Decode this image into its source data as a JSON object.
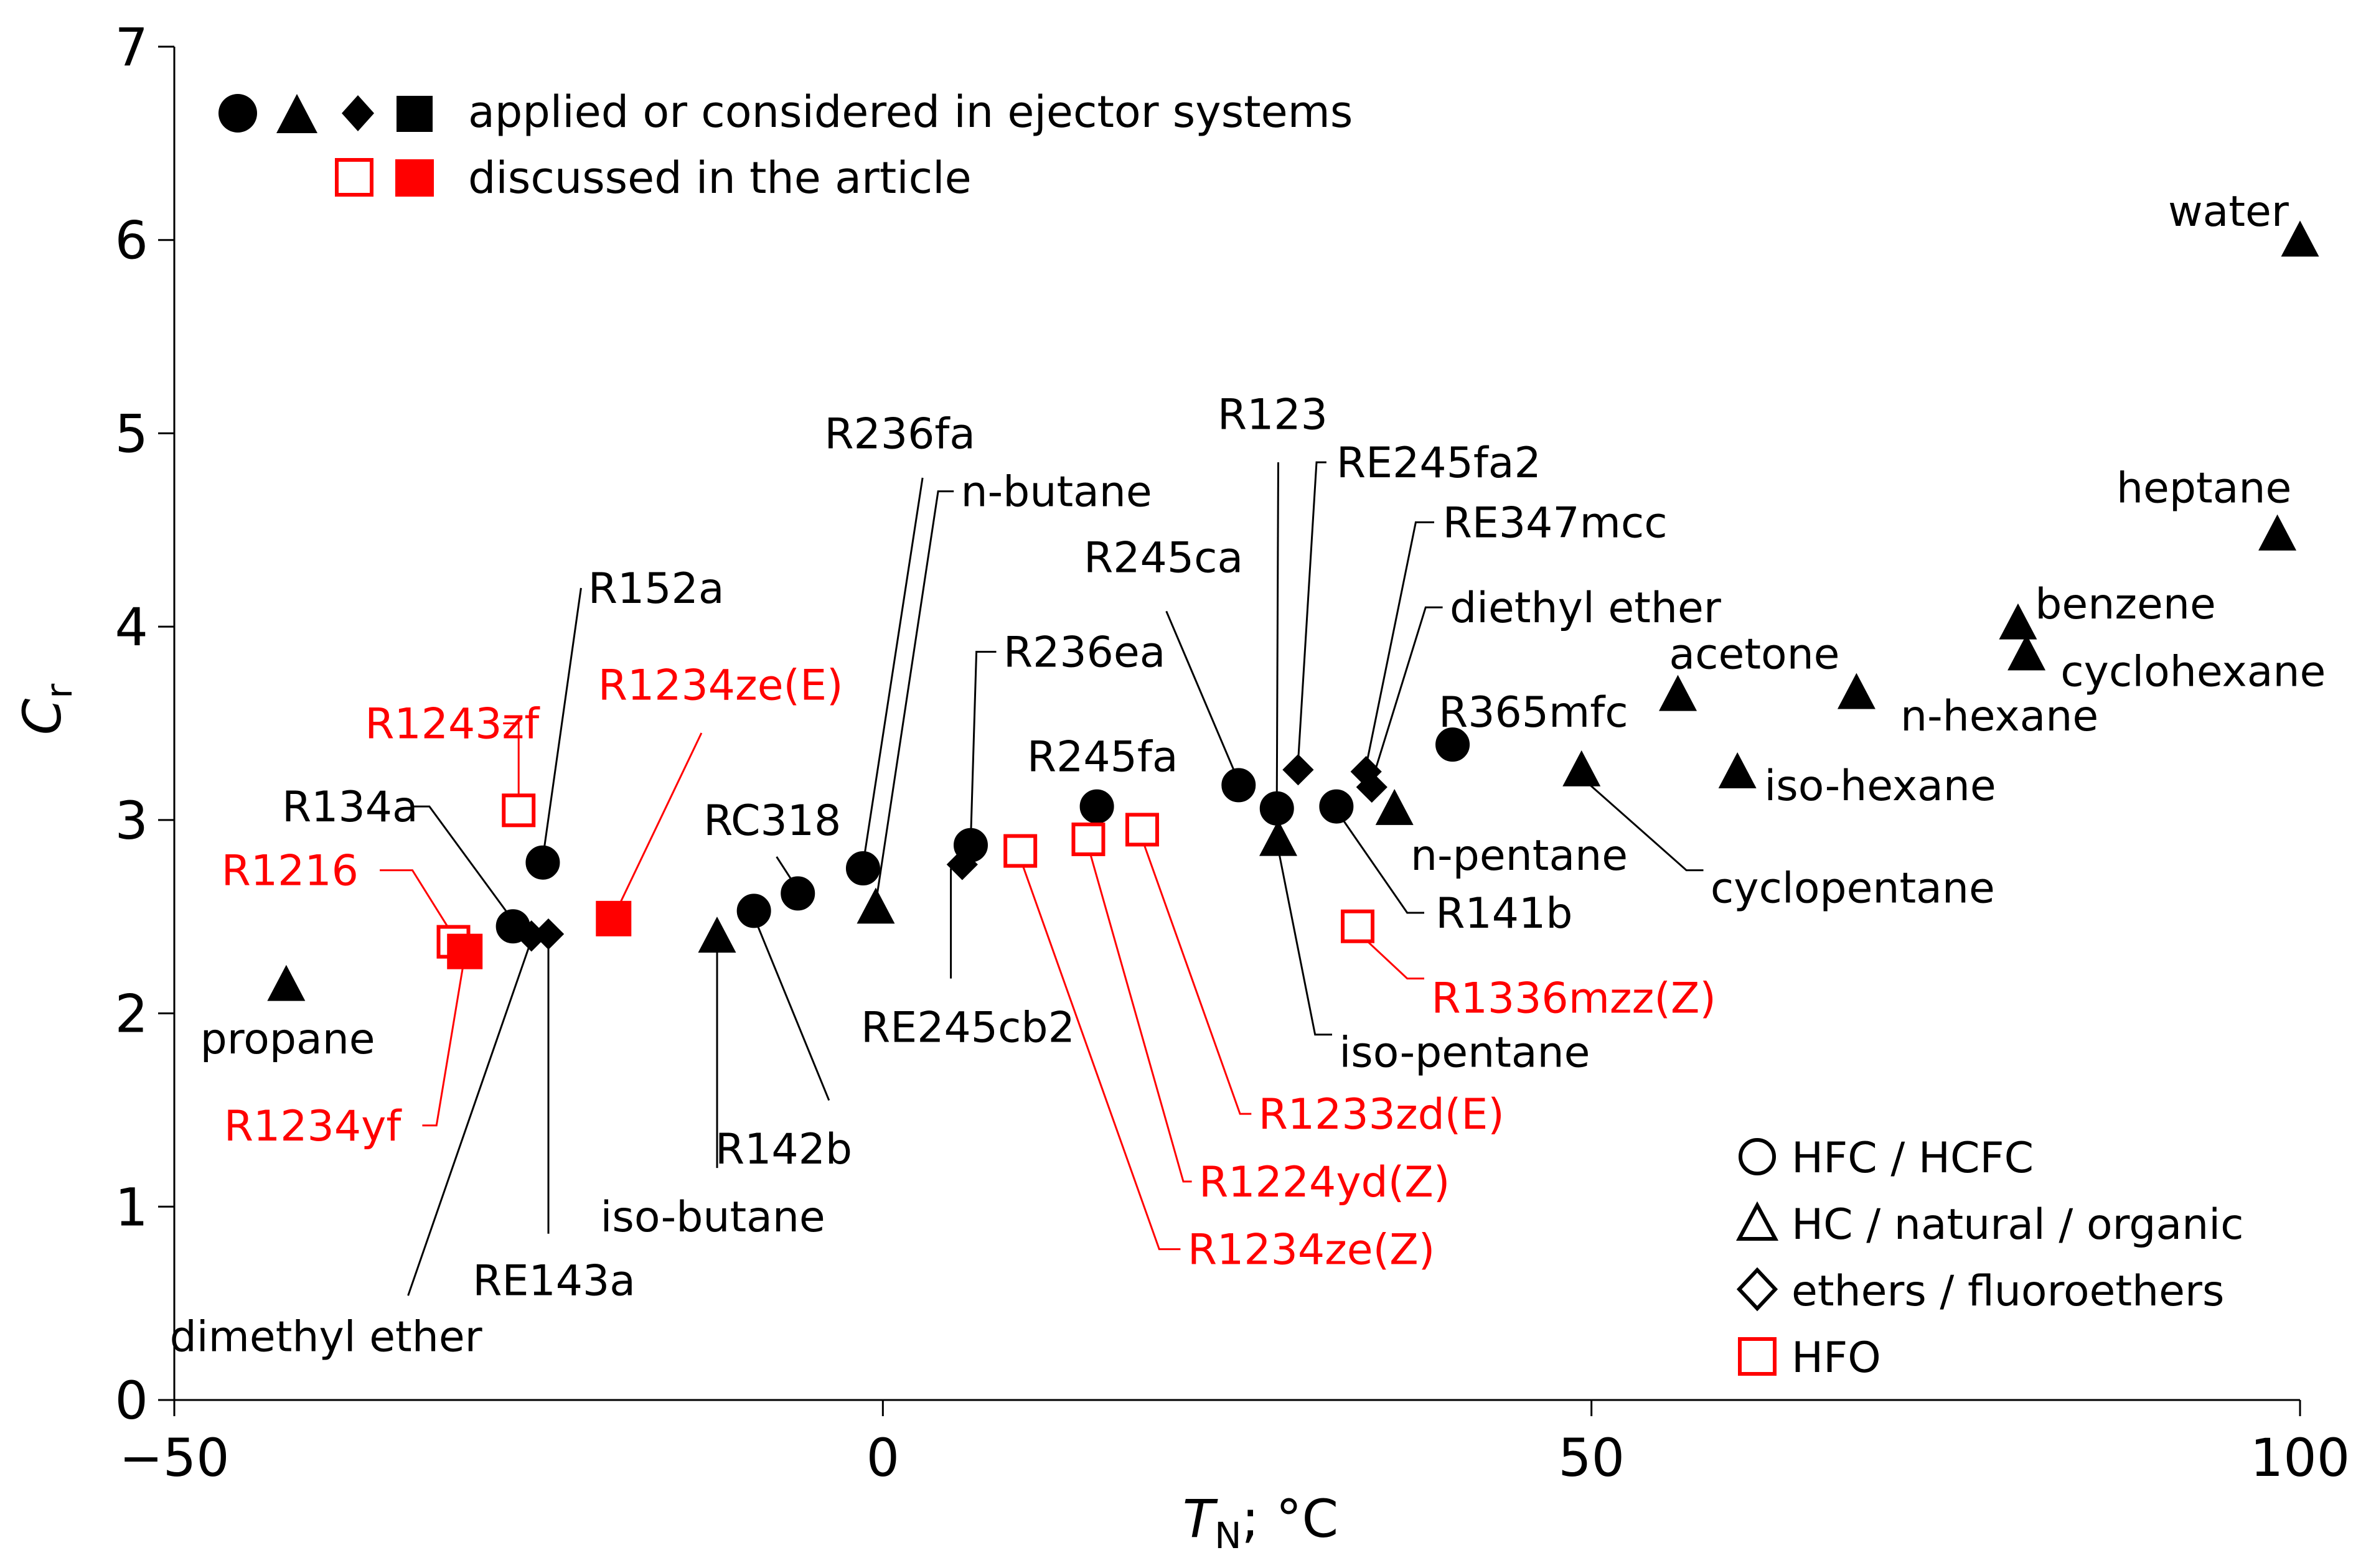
{
  "chart_data": {
    "type": "scatter",
    "xlabel_main": "T",
    "xlabel_sub": "N",
    "xlabel_rest": "; °C",
    "ylabel_main": "C",
    "ylabel_sub": "r",
    "xlim": [
      -50,
      100
    ],
    "ylim": [
      0,
      7
    ],
    "xticks": [
      -50,
      0,
      50,
      100
    ],
    "xtick_labels": [
      "−50",
      "0",
      "50",
      "100"
    ],
    "yticks": [
      0,
      1,
      2,
      3,
      4,
      5,
      6,
      7
    ],
    "ytick_labels": [
      "0",
      "1",
      "2",
      "3",
      "4",
      "5",
      "6",
      "7"
    ],
    "legend_top": {
      "line1": "applied or considered in ejector systems",
      "line2": "discussed in the article"
    },
    "legend_bottom": [
      {
        "shape": "circle",
        "label": "HFC / HCFC"
      },
      {
        "shape": "triangle",
        "label": "HC / natural / organic"
      },
      {
        "shape": "diamond",
        "label": "ethers / fluoroethers"
      },
      {
        "shape": "square",
        "label": "HFO"
      }
    ],
    "colors": {
      "black": "#000000",
      "red": "#ff0000"
    },
    "points": [
      {
        "name": "propane",
        "x": -42.1,
        "y": 2.15,
        "shape": "triangle",
        "fill": true,
        "color": "black",
        "lx": -42,
        "ly": 1.87,
        "anchor": "middle"
      },
      {
        "name": "R1216",
        "x": -30.3,
        "y": 2.37,
        "shape": "square",
        "fill": false,
        "color": "red",
        "lx": -37,
        "ly": 2.74,
        "anchor": "end",
        "leader": [
          [
            -35.5,
            2.74
          ],
          [
            -33.2,
            2.74
          ],
          [
            -30.3,
            2.4
          ]
        ]
      },
      {
        "name": "R1234yf",
        "x": -29.5,
        "y": 2.32,
        "shape": "square",
        "fill": true,
        "color": "red",
        "lx": -34,
        "ly": 1.42,
        "anchor": "end",
        "leader": [
          [
            -32.5,
            1.42
          ],
          [
            -31.5,
            1.42
          ],
          [
            -29.5,
            2.3
          ]
        ]
      },
      {
        "name": "R134a",
        "x": -26.1,
        "y": 2.45,
        "shape": "circle",
        "fill": true,
        "color": "black",
        "lx": -37.6,
        "ly": 3.07,
        "anchor": "middle",
        "leader": [
          [
            -33.3,
            3.07
          ],
          [
            -32,
            3.07
          ],
          [
            -26.1,
            2.48
          ]
        ]
      },
      {
        "name": "dimethyl ether",
        "x": -24.8,
        "y": 2.4,
        "shape": "diamond",
        "fill": true,
        "color": "black",
        "lx": -39.3,
        "ly": 0.33,
        "anchor": "middle",
        "leader": [
          [
            -33.5,
            0.54
          ],
          [
            -24.8,
            2.38
          ]
        ]
      },
      {
        "name": "RE143a",
        "x": -23.6,
        "y": 2.41,
        "shape": "diamond",
        "fill": true,
        "color": "black",
        "lx": -23.2,
        "ly": 0.62,
        "anchor": "middle",
        "leader": [
          [
            -23.6,
            0.86
          ],
          [
            -23.6,
            2.38
          ]
        ]
      },
      {
        "name": "R1243zf",
        "x": -25.7,
        "y": 3.05,
        "shape": "square",
        "fill": false,
        "color": "red",
        "lx": -30.4,
        "ly": 3.5,
        "anchor": "middle",
        "leader": [
          [
            -26.8,
            3.5
          ],
          [
            -25.7,
            3.5
          ],
          [
            -25.7,
            3.1
          ]
        ]
      },
      {
        "name": "R152a",
        "x": -24.0,
        "y": 2.78,
        "shape": "circle",
        "fill": true,
        "color": "black",
        "lx": -20.8,
        "ly": 4.2,
        "anchor": "start",
        "leader": [
          [
            -21.3,
            4.2
          ],
          [
            -21.3,
            4.2
          ],
          [
            -24,
            2.8
          ]
        ]
      },
      {
        "name": "R1234ze(E)",
        "x": -19.0,
        "y": 2.49,
        "shape": "square",
        "fill": true,
        "color": "red",
        "lx": -20.1,
        "ly": 3.7,
        "anchor": "start",
        "leader": [
          [
            -12.8,
            3.45
          ],
          [
            -19,
            2.5
          ]
        ]
      },
      {
        "name": "iso-butane",
        "x": -11.7,
        "y": 2.4,
        "shape": "triangle",
        "fill": true,
        "color": "black",
        "lx": -12,
        "ly": 0.95,
        "anchor": "middle",
        "leader": [
          [
            -11.7,
            1.2
          ],
          [
            -11.7,
            2.35
          ]
        ]
      },
      {
        "name": "R142b",
        "x": -9.1,
        "y": 2.53,
        "shape": "circle",
        "fill": true,
        "color": "black",
        "lx": -7,
        "ly": 1.3,
        "anchor": "middle",
        "leader": [
          [
            -3.8,
            1.55
          ],
          [
            -9.1,
            2.5
          ]
        ]
      },
      {
        "name": "RC318",
        "x": -6.0,
        "y": 2.62,
        "shape": "circle",
        "fill": true,
        "color": "black",
        "lx": -7.8,
        "ly": 3.0,
        "anchor": "middle",
        "leader": [
          [
            -7.5,
            2.81
          ],
          [
            -6,
            2.64
          ]
        ]
      },
      {
        "name": "R236fa",
        "x": -1.4,
        "y": 2.75,
        "shape": "circle",
        "fill": true,
        "color": "black",
        "lx": 1.2,
        "ly": 5.0,
        "anchor": "middle",
        "leader": [
          [
            2.8,
            4.77
          ],
          [
            -1.4,
            2.77
          ]
        ]
      },
      {
        "name": "n-butane",
        "x": -0.5,
        "y": 2.55,
        "shape": "triangle",
        "fill": true,
        "color": "black",
        "lx": 5.5,
        "ly": 4.7,
        "anchor": "start",
        "leader": [
          [
            5,
            4.7
          ],
          [
            3.9,
            4.7
          ],
          [
            -0.5,
            2.57
          ]
        ]
      },
      {
        "name": "RE245cb2",
        "x": 5.6,
        "y": 2.77,
        "shape": "diamond",
        "fill": true,
        "color": "black",
        "lx": 6,
        "ly": 1.93,
        "anchor": "middle",
        "leader": [
          [
            4.8,
            2.18
          ],
          [
            4.8,
            2.75
          ]
        ]
      },
      {
        "name": "R236ea",
        "x": 6.2,
        "y": 2.87,
        "shape": "circle",
        "fill": true,
        "color": "black",
        "lx": 8.5,
        "ly": 3.87,
        "anchor": "start",
        "leader": [
          [
            8,
            3.87
          ],
          [
            6.6,
            3.87
          ],
          [
            6.2,
            2.9
          ]
        ]
      },
      {
        "name": "R1234ze(Z)",
        "x": 9.7,
        "y": 2.84,
        "shape": "square",
        "fill": false,
        "color": "red",
        "lx": 21.5,
        "ly": 0.78,
        "anchor": "start",
        "leader": [
          [
            21,
            0.78
          ],
          [
            19.5,
            0.78
          ],
          [
            9.7,
            2.8
          ]
        ]
      },
      {
        "name": "R245fa",
        "x": 15.1,
        "y": 3.07,
        "shape": "circle",
        "fill": true,
        "color": "black",
        "lx": 15.5,
        "ly": 3.33,
        "anchor": "middle"
      },
      {
        "name": "R1224yd(Z)",
        "x": 14.5,
        "y": 2.9,
        "shape": "square",
        "fill": false,
        "color": "red",
        "lx": 22.3,
        "ly": 1.13,
        "anchor": "start",
        "leader": [
          [
            21.8,
            1.13
          ],
          [
            21.2,
            1.13
          ],
          [
            14.5,
            2.86
          ]
        ]
      },
      {
        "name": "R1233zd(E)",
        "x": 18.3,
        "y": 2.95,
        "shape": "square",
        "fill": false,
        "color": "red",
        "lx": 26.5,
        "ly": 1.48,
        "anchor": "start",
        "leader": [
          [
            26,
            1.48
          ],
          [
            25.2,
            1.48
          ],
          [
            18.3,
            2.9
          ]
        ]
      },
      {
        "name": "R245ca",
        "x": 25.1,
        "y": 3.18,
        "shape": "circle",
        "fill": true,
        "color": "black",
        "lx": 19.8,
        "ly": 4.36,
        "anchor": "middle",
        "leader": [
          [
            20,
            4.08
          ],
          [
            25.1,
            3.2
          ]
        ]
      },
      {
        "name": "R123",
        "x": 27.8,
        "y": 3.06,
        "shape": "circle",
        "fill": true,
        "color": "black",
        "lx": 27.5,
        "ly": 5.1,
        "anchor": "middle",
        "leader": [
          [
            27.9,
            4.85
          ],
          [
            27.8,
            3.1
          ]
        ]
      },
      {
        "name": "iso-pentane",
        "x": 27.9,
        "y": 2.9,
        "shape": "triangle",
        "fill": true,
        "color": "black",
        "lx": 32.2,
        "ly": 1.8,
        "anchor": "start",
        "leader": [
          [
            31.7,
            1.89
          ],
          [
            30.5,
            1.89
          ],
          [
            27.9,
            2.85
          ]
        ]
      },
      {
        "name": "RE245fa2",
        "x": 29.3,
        "y": 3.26,
        "shape": "diamond",
        "fill": true,
        "color": "black",
        "lx": 32,
        "ly": 4.85,
        "anchor": "start",
        "leader": [
          [
            31.3,
            4.85
          ],
          [
            30.6,
            4.85
          ],
          [
            29.3,
            3.3
          ]
        ]
      },
      {
        "name": "R141b",
        "x": 32,
        "y": 3.07,
        "shape": "circle",
        "fill": true,
        "color": "black",
        "lx": 39,
        "ly": 2.52,
        "anchor": "start",
        "leader": [
          [
            38.2,
            2.52
          ],
          [
            37,
            2.52
          ],
          [
            32,
            3.05
          ]
        ]
      },
      {
        "name": "RE347mcc",
        "x": 34.1,
        "y": 3.25,
        "shape": "diamond",
        "fill": true,
        "color": "black",
        "lx": 39.5,
        "ly": 4.54,
        "anchor": "start",
        "leader": [
          [
            38.9,
            4.54
          ],
          [
            37.6,
            4.54
          ],
          [
            34.1,
            3.28
          ]
        ]
      },
      {
        "name": "diethyl ether",
        "x": 34.5,
        "y": 3.17,
        "shape": "diamond",
        "fill": true,
        "color": "black",
        "lx": 40,
        "ly": 4.1,
        "anchor": "start",
        "leader": [
          [
            39.5,
            4.1
          ],
          [
            38.3,
            4.1
          ],
          [
            34.5,
            3.2
          ]
        ]
      },
      {
        "name": "n-pentane",
        "x": 36.1,
        "y": 3.06,
        "shape": "triangle",
        "fill": true,
        "color": "black",
        "lx": 44.9,
        "ly": 2.82,
        "anchor": "middle"
      },
      {
        "name": "R1336mzz(Z)",
        "x": 33.5,
        "y": 2.45,
        "shape": "square",
        "fill": false,
        "color": "red",
        "lx": 38.7,
        "ly": 2.08,
        "anchor": "start",
        "leader": [
          [
            38.2,
            2.18
          ],
          [
            37,
            2.18
          ],
          [
            33.5,
            2.42
          ]
        ]
      },
      {
        "name": "R365mfc",
        "x": 40.2,
        "y": 3.39,
        "shape": "circle",
        "fill": true,
        "color": "black",
        "lx": 45.9,
        "ly": 3.56,
        "anchor": "middle"
      },
      {
        "name": "cyclopentane",
        "x": 49.3,
        "y": 3.26,
        "shape": "triangle",
        "fill": true,
        "color": "black",
        "lx": 58.4,
        "ly": 2.65,
        "anchor": "start",
        "leader": [
          [
            57.9,
            2.74
          ],
          [
            56.7,
            2.74
          ],
          [
            49.3,
            3.22
          ]
        ]
      },
      {
        "name": "acetone",
        "x": 56.1,
        "y": 3.65,
        "shape": "triangle",
        "fill": true,
        "color": "black",
        "lx": 61.5,
        "ly": 3.86,
        "anchor": "middle"
      },
      {
        "name": "iso-hexane",
        "x": 60.3,
        "y": 3.25,
        "shape": "triangle",
        "fill": true,
        "color": "black",
        "lx": 62.2,
        "ly": 3.18,
        "anchor": "start"
      },
      {
        "name": "n-hexane",
        "x": 68.7,
        "y": 3.66,
        "shape": "triangle",
        "fill": true,
        "color": "black",
        "lx": 71.8,
        "ly": 3.54,
        "anchor": "start"
      },
      {
        "name": "benzene",
        "x": 80.1,
        "y": 4.02,
        "shape": "triangle",
        "fill": true,
        "color": "black",
        "lx": 81.3,
        "ly": 4.12,
        "anchor": "start"
      },
      {
        "name": "cyclohexane",
        "x": 80.7,
        "y": 3.86,
        "shape": "triangle",
        "fill": true,
        "color": "black",
        "lx": 83.1,
        "ly": 3.77,
        "anchor": "start"
      },
      {
        "name": "heptane",
        "x": 98.4,
        "y": 4.48,
        "shape": "triangle",
        "fill": true,
        "color": "black",
        "lx": 99.4,
        "ly": 4.72,
        "anchor": "end"
      },
      {
        "name": "water",
        "x": 100,
        "y": 6.0,
        "shape": "triangle",
        "fill": true,
        "color": "black",
        "lx": 99.2,
        "ly": 6.15,
        "anchor": "end"
      }
    ]
  }
}
